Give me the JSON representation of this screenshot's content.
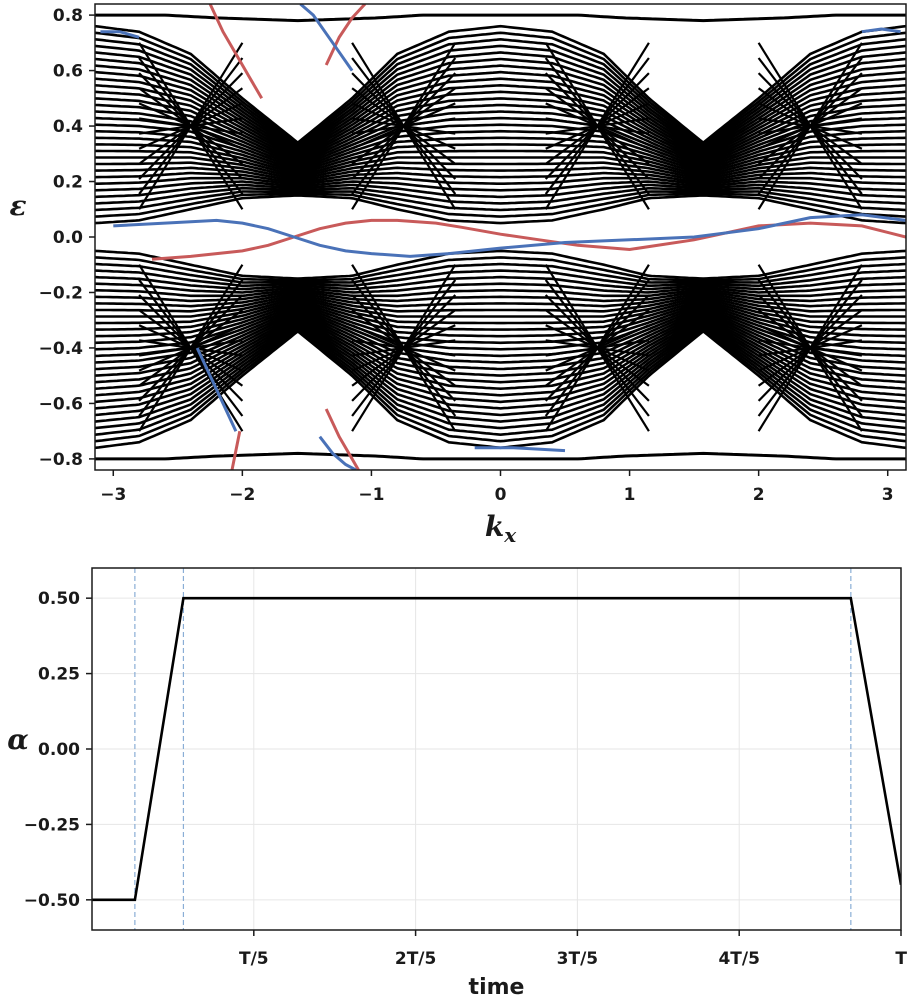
{
  "chart_data": [
    {
      "type": "line",
      "title": "",
      "xlabel": "k_x",
      "ylabel": "ε",
      "xlim": [
        -3.14159,
        3.14159
      ],
      "ylim": [
        -0.84,
        0.84
      ],
      "xticks": [
        -3,
        -2,
        -1,
        0,
        1,
        2,
        3
      ],
      "xtick_labels": [
        "−3",
        "−2",
        "−1",
        "0",
        "1",
        "2",
        "3"
      ],
      "yticks": [
        -0.8,
        -0.6,
        -0.4,
        -0.2,
        0.0,
        0.2,
        0.4,
        0.6,
        0.8
      ],
      "ytick_labels": [
        "−0.8",
        "−0.6",
        "−0.4",
        "−0.2",
        "0.0",
        "0.2",
        "0.4",
        "0.6",
        "0.8"
      ],
      "grid": false,
      "legend": "none",
      "colors": {
        "bulk": "#000000",
        "edge_red": "#c85a5a",
        "edge_blue": "#4a72b8"
      },
      "bulk_bands": {
        "count_per_side": 30,
        "outer_boundary": {
          "x": [
            -3.14,
            -2.8,
            -2.4,
            -2.0,
            -1.57,
            -1.15,
            -0.8,
            -0.4,
            0.0,
            0.4,
            0.8,
            1.15,
            1.57,
            2.0,
            2.4,
            2.8,
            3.14
          ],
          "y": [
            0.76,
            0.74,
            0.66,
            0.5,
            0.34,
            0.5,
            0.66,
            0.74,
            0.76,
            0.74,
            0.66,
            0.5,
            0.34,
            0.5,
            0.66,
            0.74,
            0.76
          ]
        },
        "inner_boundary": {
          "x": [
            -3.14,
            -2.8,
            -2.4,
            -2.0,
            -1.57,
            -1.15,
            -0.8,
            -0.4,
            0.0,
            0.4,
            0.8,
            1.15,
            1.57,
            2.0,
            2.4,
            2.8,
            3.14
          ],
          "y": [
            0.05,
            0.06,
            0.1,
            0.14,
            0.15,
            0.14,
            0.1,
            0.06,
            0.05,
            0.06,
            0.1,
            0.14,
            0.15,
            0.14,
            0.1,
            0.06,
            0.05
          ]
        },
        "outermost_band": {
          "x": [
            -3.14,
            -2.6,
            -2.2,
            -1.57,
            -0.95,
            -0.6,
            0.0,
            0.6,
            0.95,
            1.57,
            2.2,
            2.6,
            3.14
          ],
          "y": [
            0.8,
            0.8,
            0.79,
            0.78,
            0.79,
            0.8,
            0.8,
            0.8,
            0.79,
            0.78,
            0.79,
            0.8,
            0.8
          ]
        }
      },
      "series": [
        {
          "color": "red",
          "x": [
            -2.7,
            -2.4,
            -2.0,
            -1.8,
            -1.6,
            -1.4,
            -1.2,
            -1.0,
            -0.8,
            -0.5,
            -0.3,
            0.0,
            0.3,
            0.6,
            1.0,
            1.5,
            2.0,
            2.4,
            2.8,
            3.14
          ],
          "y": [
            -0.08,
            -0.07,
            -0.05,
            -0.03,
            0.0,
            0.03,
            0.05,
            0.06,
            0.06,
            0.05,
            0.035,
            0.01,
            -0.01,
            -0.03,
            -0.045,
            -0.01,
            0.04,
            0.05,
            0.04,
            0.0
          ]
        },
        {
          "color": "blue",
          "x": [
            -3.0,
            -2.6,
            -2.2,
            -2.0,
            -1.8,
            -1.6,
            -1.4,
            -1.2,
            -1.0,
            -0.7,
            -0.4,
            0.0,
            0.5,
            1.0,
            1.5,
            2.0,
            2.4,
            2.8,
            3.14
          ],
          "y": [
            0.04,
            0.05,
            0.06,
            0.05,
            0.03,
            0.0,
            -0.03,
            -0.05,
            -0.06,
            -0.07,
            -0.06,
            -0.04,
            -0.02,
            -0.01,
            0.0,
            0.03,
            0.07,
            0.08,
            0.06
          ]
        },
        {
          "color": "red",
          "x": [
            -2.25,
            -2.15,
            -2.05,
            -1.95,
            -1.85
          ],
          "y": [
            0.84,
            0.74,
            0.66,
            0.58,
            0.5
          ]
        },
        {
          "color": "red",
          "x": [
            -1.35,
            -1.25,
            -1.15,
            -1.05
          ],
          "y": [
            0.62,
            0.72,
            0.79,
            0.84
          ]
        },
        {
          "color": "red",
          "x": [
            -2.08,
            -2.05,
            -2.02
          ],
          "y": [
            -0.84,
            -0.77,
            -0.7
          ]
        },
        {
          "color": "red",
          "x": [
            -1.35,
            -1.25,
            -1.15,
            -1.1
          ],
          "y": [
            -0.62,
            -0.72,
            -0.8,
            -0.84
          ]
        },
        {
          "color": "blue",
          "x": [
            -1.55,
            -1.45,
            -1.3,
            -1.15
          ],
          "y": [
            0.84,
            0.8,
            0.7,
            0.6
          ]
        },
        {
          "color": "blue",
          "x": [
            -2.35,
            -2.25,
            -2.15,
            -2.05
          ],
          "y": [
            -0.4,
            -0.5,
            -0.6,
            -0.7
          ]
        },
        {
          "color": "blue",
          "x": [
            -1.4,
            -1.3,
            -1.2,
            -1.12
          ],
          "y": [
            -0.72,
            -0.78,
            -0.82,
            -0.84
          ]
        },
        {
          "color": "blue",
          "x": [
            -3.1,
            -2.95,
            -2.8
          ],
          "y": [
            0.74,
            0.74,
            0.72
          ]
        },
        {
          "color": "blue",
          "x": [
            2.8,
            2.95,
            3.1
          ],
          "y": [
            0.74,
            0.75,
            0.74
          ]
        },
        {
          "color": "blue",
          "x": [
            -0.2,
            0.1,
            0.5
          ],
          "y": [
            -0.76,
            -0.76,
            -0.77
          ]
        }
      ]
    },
    {
      "type": "line",
      "title": "",
      "xlabel": "time",
      "ylabel": "α",
      "xlim": [
        0,
        1
      ],
      "ylim": [
        -0.6,
        0.6
      ],
      "xticks": [
        0.2,
        0.4,
        0.6,
        0.8,
        1.0
      ],
      "xtick_labels": [
        "T/5",
        "2T/5",
        "3T/5",
        "4T/5",
        "T"
      ],
      "yticks": [
        -0.5,
        -0.25,
        0.0,
        0.25,
        0.5
      ],
      "ytick_labels": [
        "−0.50",
        "−0.25",
        "0.00",
        "0.25",
        "0.50"
      ],
      "grid": true,
      "legend": "none",
      "colors": {
        "line": "#000000",
        "vlines": "#8aaed6",
        "grid": "#e6e6e6"
      },
      "vlines": [
        0.053,
        0.113,
        0.938
      ],
      "series": [
        {
          "x": [
            0.0,
            0.053,
            0.113,
            0.938,
            1.0
          ],
          "y": [
            -0.5,
            -0.5,
            0.5,
            0.5,
            -0.45
          ]
        }
      ]
    }
  ]
}
